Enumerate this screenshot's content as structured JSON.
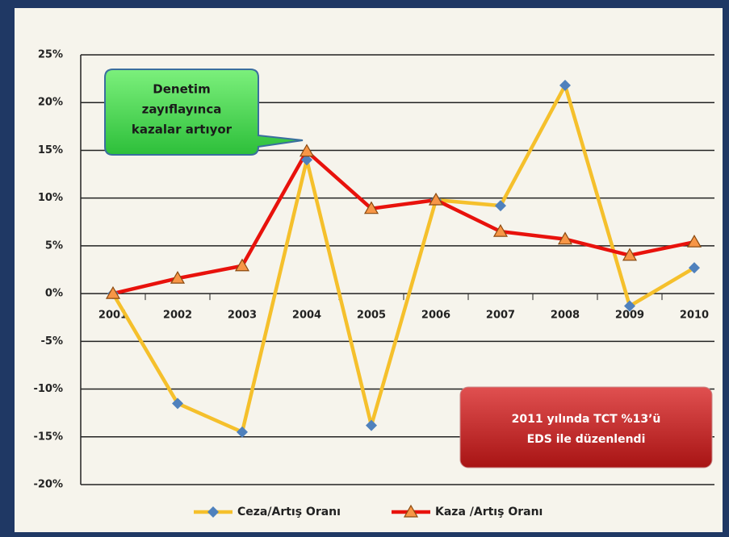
{
  "chart_data": {
    "type": "line",
    "categories": [
      "2001",
      "2002",
      "2003",
      "2004",
      "2005",
      "2006",
      "2007",
      "2008",
      "2009",
      "2010"
    ],
    "series": [
      {
        "name": "Ceza/Artış Oranı",
        "color": "#f5c02c",
        "marker_color": "#4f81bd",
        "marker": "diamond",
        "values": [
          0,
          -11.5,
          -14.5,
          14,
          -13.8,
          9.8,
          9.2,
          21.8,
          -1.3,
          2.7
        ]
      },
      {
        "name": "Kaza /Artış Oranı",
        "color": "#e8120c",
        "marker_color": "#f79646",
        "marker": "triangle",
        "values": [
          0,
          1.6,
          2.9,
          14.9,
          8.9,
          9.8,
          6.5,
          5.7,
          4,
          5.4
        ]
      }
    ],
    "ylim": [
      -20,
      25
    ],
    "yticks": [
      {
        "value": -20,
        "label": "-20%"
      },
      {
        "value": -15,
        "label": "-15%"
      },
      {
        "value": -10,
        "label": "-10%"
      },
      {
        "value": -5,
        "label": "-5%"
      },
      {
        "value": 0,
        "label": "0%"
      },
      {
        "value": 5,
        "label": "5%"
      },
      {
        "value": 10,
        "label": "10%"
      },
      {
        "value": 15,
        "label": "15%"
      },
      {
        "value": 20,
        "label": "20%"
      },
      {
        "value": 25,
        "label": "25%"
      }
    ],
    "grid": true,
    "legend": "bottom",
    "annotations": [
      {
        "lines": [
          "Denetim",
          "zayıflayınca",
          "kazalar artıyor"
        ]
      },
      {
        "lines": [
          "2011 yılında TCT %13’ü",
          "EDS ile düzenlendi"
        ]
      }
    ]
  }
}
